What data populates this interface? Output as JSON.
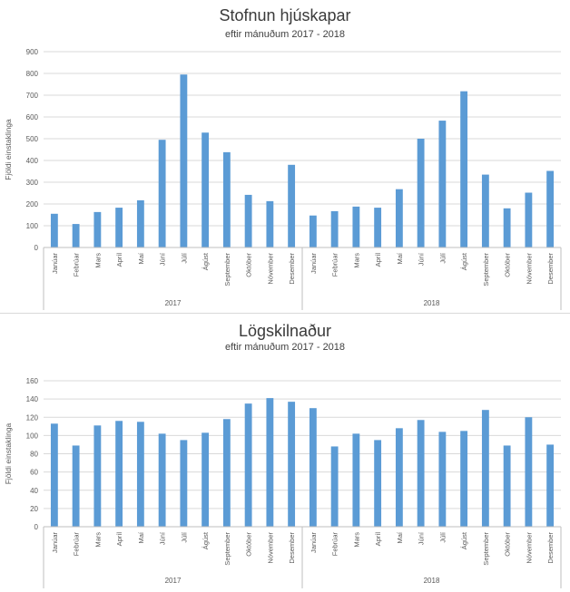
{
  "chart_data": [
    {
      "type": "bar",
      "title": "Stofnun hjúskapar",
      "subtitle": "eftir mánuðum 2017 - 2018",
      "ylabel": "Fjöldi einstaklinga",
      "xlabel": "",
      "ylim": [
        0,
        900
      ],
      "yticks": [
        "0",
        "100",
        "200",
        "300",
        "400",
        "500",
        "600",
        "700",
        "800",
        "900"
      ],
      "grid": true,
      "legend": "none",
      "bar_color": "#5b9bd5",
      "groups": [
        {
          "label": "2017",
          "categories": [
            "Janúar",
            "Febrúar",
            "Mars",
            "Apríl",
            "Maí",
            "Júní",
            "Júlí",
            "Ágúst",
            "September",
            "Október",
            "Nóvember",
            "Desember"
          ],
          "values": [
            155,
            108,
            163,
            183,
            217,
            495,
            795,
            528,
            438,
            242,
            213,
            380
          ]
        },
        {
          "label": "2018",
          "categories": [
            "Janúar",
            "Febrúar",
            "Mars",
            "Apríl",
            "Maí",
            "Júní",
            "Júlí",
            "Ágúst",
            "September",
            "Október",
            "Nóvember",
            "Desember"
          ],
          "values": [
            147,
            167,
            188,
            183,
            268,
            500,
            583,
            718,
            335,
            180,
            252,
            352
          ]
        }
      ]
    },
    {
      "type": "bar",
      "title": "Lögskilnaður",
      "subtitle": "eftir mánuðum 2017 - 2018",
      "ylabel": "Fjöldi einstaklinga",
      "xlabel": "",
      "ylim": [
        0,
        160
      ],
      "yticks": [
        "0",
        "20",
        "40",
        "60",
        "80",
        "100",
        "120",
        "140",
        "160"
      ],
      "grid": true,
      "legend": "none",
      "bar_color": "#5b9bd5",
      "groups": [
        {
          "label": "2017",
          "categories": [
            "Janúar",
            "Febrúar",
            "Mars",
            "Apríl",
            "Maí",
            "Júní",
            "Júlí",
            "Ágúst",
            "September",
            "Október",
            "Nóvember",
            "Desember"
          ],
          "values": [
            113,
            89,
            111,
            116,
            115,
            102,
            95,
            103,
            118,
            135,
            141,
            137
          ]
        },
        {
          "label": "2018",
          "categories": [
            "Janúar",
            "Febrúar",
            "Mars",
            "Apríl",
            "Maí",
            "Júní",
            "Júlí",
            "Ágúst",
            "September",
            "Október",
            "Nóvember",
            "Desember"
          ],
          "values": [
            130,
            88,
            102,
            95,
            108,
            117,
            104,
            105,
            128,
            89,
            120,
            90
          ]
        }
      ]
    }
  ]
}
